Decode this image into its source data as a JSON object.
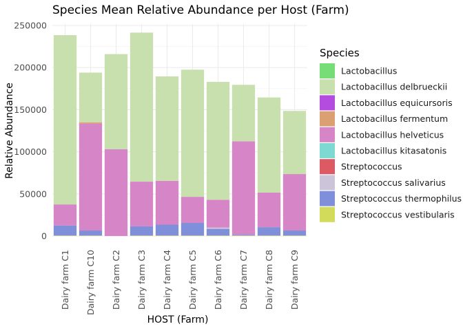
{
  "chart_data": {
    "type": "bar",
    "stacked": true,
    "title": "Species Mean Relative Abundance per Host (Farm)",
    "xlabel": "HOST (Farm)",
    "ylabel": "Relative Abundance",
    "ylim": [
      0,
      250000
    ],
    "yticks": [
      0,
      50000,
      100000,
      150000,
      200000,
      250000
    ],
    "ytick_labels": [
      "0",
      "50000",
      "100000",
      "150000",
      "200000",
      "250000"
    ],
    "grid": true,
    "legend_title": "Species",
    "legend_position": "right",
    "categories": [
      "Dairy farm C1",
      "Dairy farm C10",
      "Dairy farm C2",
      "Dairy farm C3",
      "Dairy farm C4",
      "Dairy farm C5",
      "Dairy farm C6",
      "Dairy farm C7",
      "Dairy farm C8",
      "Dairy farm C9"
    ],
    "series": [
      {
        "name": "Lactobacillus",
        "color": "#77DD77",
        "values": [
          0,
          0,
          0,
          0,
          0,
          0,
          0,
          0,
          0,
          0
        ]
      },
      {
        "name": "Lactobacillus delbrueckii",
        "color": "#C8DFAE",
        "values": [
          201000,
          59000,
          113000,
          177000,
          124000,
          151000,
          140000,
          67000,
          113000,
          75000
        ]
      },
      {
        "name": "Lactobacillus equicursoris",
        "color": "#B44CE0",
        "values": [
          0,
          0,
          0,
          0,
          0,
          0,
          0,
          0,
          0,
          0
        ]
      },
      {
        "name": "Lactobacillus fermentum",
        "color": "#DBA071",
        "values": [
          0,
          1500,
          0,
          0,
          0,
          0,
          0,
          0,
          0,
          0
        ]
      },
      {
        "name": "Lactobacillus helveticus",
        "color": "#D686C6",
        "values": [
          25000,
          127000,
          103000,
          53000,
          52000,
          31000,
          33000,
          111000,
          41000,
          67000
        ]
      },
      {
        "name": "Lactobacillus kitasatonis",
        "color": "#7DD9D1",
        "values": [
          0,
          0,
          0,
          0,
          0,
          0,
          0,
          0,
          0,
          0
        ]
      },
      {
        "name": "Streptococcus",
        "color": "#DB5A63",
        "values": [
          0,
          0,
          0,
          0,
          0,
          0,
          0,
          0,
          0,
          0
        ]
      },
      {
        "name": "Streptococcus salivarius",
        "color": "#CCC4D9",
        "values": [
          0,
          0,
          0,
          0,
          0,
          0,
          1500,
          0,
          0,
          0
        ]
      },
      {
        "name": "Streptococcus thermophilus",
        "color": "#7F8FD9",
        "values": [
          12000,
          6000,
          0,
          11000,
          13000,
          15000,
          8000,
          1000,
          10000,
          6000
        ]
      },
      {
        "name": "Streptococcus vestibularis",
        "color": "#D3DB5A",
        "values": [
          500,
          500,
          0,
          500,
          500,
          500,
          500,
          500,
          500,
          500
        ]
      }
    ]
  }
}
